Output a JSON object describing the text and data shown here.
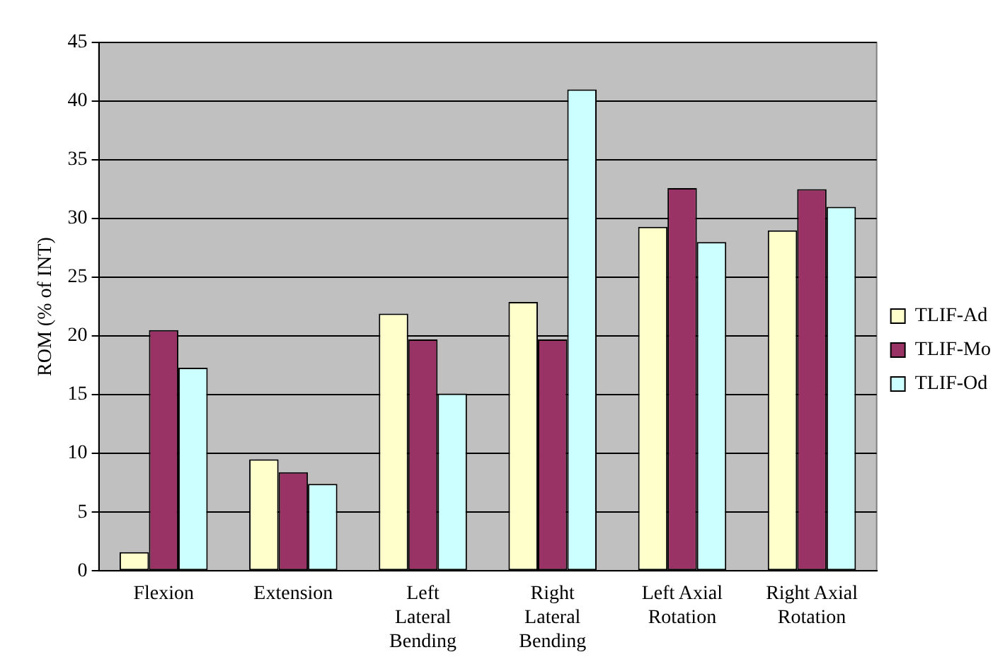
{
  "chart_data": {
    "type": "bar",
    "ylabel": "ROM (% of INT)",
    "categories": [
      "Flexion",
      "Extension",
      "Left Lateral Bending",
      "Right Lateral Bending",
      "Left Axial Rotation",
      "Right Axial Rotation"
    ],
    "series": [
      {
        "name": "TLIF-Ad",
        "color": "#ffffcc",
        "values": [
          1.6,
          9.5,
          21.9,
          22.9,
          29.3,
          29.0
        ]
      },
      {
        "name": "TLIF-Mo",
        "color": "#993366",
        "values": [
          20.5,
          8.4,
          19.7,
          19.7,
          32.6,
          32.5
        ]
      },
      {
        "name": "TLIF-Od",
        "color": "#ccffff",
        "values": [
          17.3,
          7.4,
          15.1,
          41.0,
          28.0,
          31.0
        ]
      }
    ],
    "ylim": [
      0,
      45
    ],
    "yticks": [
      0,
      5,
      10,
      15,
      20,
      25,
      30,
      35,
      40,
      45
    ],
    "grid": "y",
    "legend": "right"
  }
}
